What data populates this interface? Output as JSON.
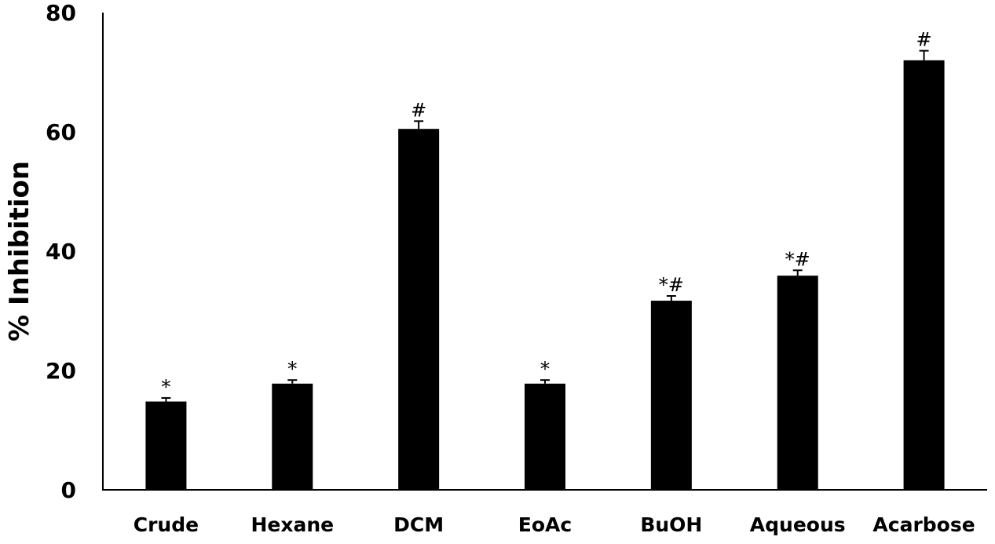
{
  "chart_data": {
    "type": "bar",
    "title": "",
    "xlabel": "",
    "ylabel": "% Inhibition",
    "categories": [
      "Crude",
      "Hexane",
      "DCM",
      "EoAc",
      "BuOH",
      "Aqueous",
      "Acarbose"
    ],
    "values": [
      14.8,
      17.8,
      60.5,
      17.8,
      31.7,
      35.9,
      72.0
    ],
    "errors": [
      0.6,
      0.6,
      1.3,
      0.6,
      0.8,
      0.9,
      1.6
    ],
    "annotations": [
      "*",
      "*",
      "#",
      "*",
      "*#",
      "*#",
      "#"
    ],
    "ylim": [
      0,
      80
    ],
    "yticks": [
      0,
      20,
      40,
      60,
      80
    ],
    "grid": false,
    "legend": "none",
    "bar_color": "#000000"
  }
}
